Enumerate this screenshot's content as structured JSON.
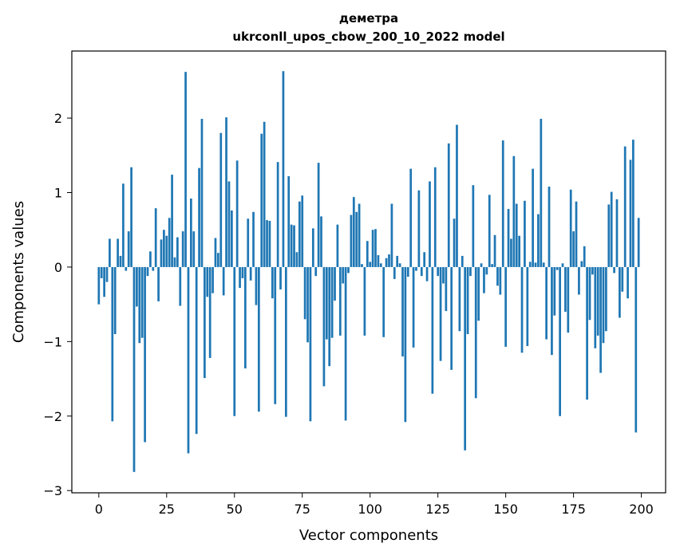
{
  "chart_data": {
    "type": "bar",
    "title": "деметра",
    "subtitle": "ukrconll_upos_cbow_200_10_2022 model",
    "xlabel": "Vector components",
    "ylabel": "Components values",
    "xlim": [
      -9.95,
      208.95
    ],
    "ylim": [
      -3.03,
      2.9
    ],
    "x_ticks": [
      0,
      25,
      50,
      75,
      100,
      125,
      150,
      175,
      200
    ],
    "x_tick_labels": [
      "0",
      "25",
      "50",
      "75",
      "100",
      "125",
      "150",
      "175",
      "200"
    ],
    "y_ticks": [
      -3,
      -2,
      -1,
      0,
      1,
      2
    ],
    "y_tick_labels": [
      "−3",
      "−2",
      "−1",
      "0",
      "1",
      "2"
    ],
    "grid": false,
    "bar_color": "#1f77b4",
    "x": [
      0,
      1,
      2,
      3,
      4,
      5,
      6,
      7,
      8,
      9,
      10,
      11,
      12,
      13,
      14,
      15,
      16,
      17,
      18,
      19,
      20,
      21,
      22,
      23,
      24,
      25,
      26,
      27,
      28,
      29,
      30,
      31,
      32,
      33,
      34,
      35,
      36,
      37,
      38,
      39,
      40,
      41,
      42,
      43,
      44,
      45,
      46,
      47,
      48,
      49,
      50,
      51,
      52,
      53,
      54,
      55,
      56,
      57,
      58,
      59,
      60,
      61,
      62,
      63,
      64,
      65,
      66,
      67,
      68,
      69,
      70,
      71,
      72,
      73,
      74,
      75,
      76,
      77,
      78,
      79,
      80,
      81,
      82,
      83,
      84,
      85,
      86,
      87,
      88,
      89,
      90,
      91,
      92,
      93,
      94,
      95,
      96,
      97,
      98,
      99,
      100,
      101,
      102,
      103,
      104,
      105,
      106,
      107,
      108,
      109,
      110,
      111,
      112,
      113,
      114,
      115,
      116,
      117,
      118,
      119,
      120,
      121,
      122,
      123,
      124,
      125,
      126,
      127,
      128,
      129,
      130,
      131,
      132,
      133,
      134,
      135,
      136,
      137,
      138,
      139,
      140,
      141,
      142,
      143,
      144,
      145,
      146,
      147,
      148,
      149,
      150,
      151,
      152,
      153,
      154,
      155,
      156,
      157,
      158,
      159,
      160,
      161,
      162,
      163,
      164,
      165,
      166,
      167,
      168,
      169,
      170,
      171,
      172,
      173,
      174,
      175,
      176,
      177,
      178,
      179,
      180,
      181,
      182,
      183,
      184,
      185,
      186,
      187,
      188,
      189,
      190,
      191,
      192,
      193,
      194,
      195,
      196,
      197,
      198,
      199
    ],
    "values": [
      -0.5,
      -0.15,
      -0.4,
      -0.2,
      0.38,
      -2.07,
      -0.9,
      0.38,
      0.15,
      1.12,
      -0.05,
      0.48,
      1.34,
      -2.75,
      -0.53,
      -1.02,
      -0.95,
      -2.35,
      -0.12,
      0.21,
      -0.05,
      0.79,
      -0.46,
      0.37,
      0.5,
      0.42,
      0.66,
      1.24,
      0.13,
      0.4,
      -0.52,
      0.48,
      2.62,
      -2.5,
      0.92,
      0.48,
      -2.24,
      1.33,
      1.99,
      -1.49,
      -0.4,
      -1.22,
      -0.35,
      0.39,
      0.19,
      1.8,
      -0.38,
      2.01,
      1.15,
      0.76,
      -2.0,
      1.43,
      -0.28,
      -0.15,
      -1.36,
      0.65,
      -0.18,
      0.74,
      -0.51,
      -1.94,
      1.79,
      1.95,
      0.63,
      0.62,
      -0.42,
      -1.84,
      1.41,
      -0.3,
      2.63,
      -2.01,
      1.22,
      0.57,
      0.56,
      0.2,
      0.88,
      0.96,
      -0.7,
      -1.01,
      -2.07,
      0.52,
      -0.12,
      1.4,
      0.68,
      -1.6,
      -0.97,
      -1.33,
      -0.95,
      -0.45,
      0.57,
      -0.92,
      -0.22,
      -2.06,
      -0.08,
      0.7,
      0.94,
      0.74,
      0.85,
      0.04,
      -0.92,
      0.35,
      0.07,
      0.5,
      0.51,
      0.16,
      0.05,
      -0.94,
      0.12,
      0.17,
      0.85,
      -0.16,
      0.15,
      0.05,
      -1.2,
      -2.08,
      -0.13,
      1.32,
      -1.08,
      -0.05,
      1.03,
      -0.12,
      0.2,
      -0.19,
      1.15,
      -1.7,
      1.34,
      -0.12,
      -1.26,
      -0.22,
      -0.59,
      1.66,
      -1.38,
      0.65,
      1.91,
      -0.86,
      0.15,
      -2.46,
      -0.9,
      -0.12,
      1.1,
      -1.76,
      -0.72,
      0.05,
      -0.35,
      -0.1,
      0.97,
      0.04,
      0.43,
      -0.25,
      -0.37,
      1.7,
      -1.07,
      0.78,
      0.38,
      1.49,
      0.85,
      0.42,
      -1.15,
      0.89,
      -1.06,
      0.07,
      1.32,
      0.06,
      0.71,
      1.99,
      0.06,
      -0.97,
      1.08,
      -1.18,
      -0.65,
      -0.04,
      -2.0,
      0.05,
      -0.6,
      -0.88,
      1.04,
      0.48,
      0.88,
      -0.37,
      0.08,
      0.28,
      -1.78,
      -0.71,
      -0.1,
      -1.09,
      -0.92,
      -1.42,
      -1.02,
      -0.86,
      0.84,
      1.01,
      -0.08,
      0.91,
      -0.68,
      -0.33,
      1.62,
      -0.42,
      1.44,
      1.71,
      -2.22,
      0.66
    ]
  }
}
